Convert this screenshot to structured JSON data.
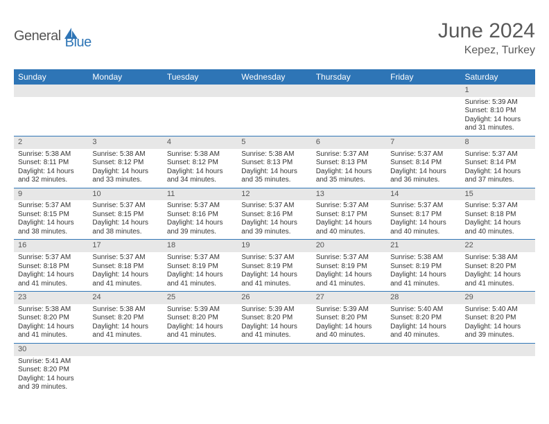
{
  "logo": {
    "text1": "General",
    "text2": "Blue"
  },
  "title": "June 2024",
  "location": "Kepez, Turkey",
  "columns": [
    "Sunday",
    "Monday",
    "Tuesday",
    "Wednesday",
    "Thursday",
    "Friday",
    "Saturday"
  ],
  "colors": {
    "header_bg": "#2e75b6",
    "header_text": "#ffffff",
    "daynum_bg": "#e7e7e7",
    "daynum_text": "#555555",
    "cell_border": "#2e75b6",
    "body_text": "#333333",
    "title_text": "#595959",
    "logo_gray": "#555555",
    "logo_blue": "#2e75b6"
  },
  "weeks": [
    [
      {
        "empty": true
      },
      {
        "empty": true
      },
      {
        "empty": true
      },
      {
        "empty": true
      },
      {
        "empty": true
      },
      {
        "empty": true
      },
      {
        "day": "1",
        "sunrise": "Sunrise: 5:39 AM",
        "sunset": "Sunset: 8:10 PM",
        "daylight1": "Daylight: 14 hours",
        "daylight2": "and 31 minutes."
      }
    ],
    [
      {
        "day": "2",
        "sunrise": "Sunrise: 5:38 AM",
        "sunset": "Sunset: 8:11 PM",
        "daylight1": "Daylight: 14 hours",
        "daylight2": "and 32 minutes."
      },
      {
        "day": "3",
        "sunrise": "Sunrise: 5:38 AM",
        "sunset": "Sunset: 8:12 PM",
        "daylight1": "Daylight: 14 hours",
        "daylight2": "and 33 minutes."
      },
      {
        "day": "4",
        "sunrise": "Sunrise: 5:38 AM",
        "sunset": "Sunset: 8:12 PM",
        "daylight1": "Daylight: 14 hours",
        "daylight2": "and 34 minutes."
      },
      {
        "day": "5",
        "sunrise": "Sunrise: 5:38 AM",
        "sunset": "Sunset: 8:13 PM",
        "daylight1": "Daylight: 14 hours",
        "daylight2": "and 35 minutes."
      },
      {
        "day": "6",
        "sunrise": "Sunrise: 5:37 AM",
        "sunset": "Sunset: 8:13 PM",
        "daylight1": "Daylight: 14 hours",
        "daylight2": "and 35 minutes."
      },
      {
        "day": "7",
        "sunrise": "Sunrise: 5:37 AM",
        "sunset": "Sunset: 8:14 PM",
        "daylight1": "Daylight: 14 hours",
        "daylight2": "and 36 minutes."
      },
      {
        "day": "8",
        "sunrise": "Sunrise: 5:37 AM",
        "sunset": "Sunset: 8:14 PM",
        "daylight1": "Daylight: 14 hours",
        "daylight2": "and 37 minutes."
      }
    ],
    [
      {
        "day": "9",
        "sunrise": "Sunrise: 5:37 AM",
        "sunset": "Sunset: 8:15 PM",
        "daylight1": "Daylight: 14 hours",
        "daylight2": "and 38 minutes."
      },
      {
        "day": "10",
        "sunrise": "Sunrise: 5:37 AM",
        "sunset": "Sunset: 8:15 PM",
        "daylight1": "Daylight: 14 hours",
        "daylight2": "and 38 minutes."
      },
      {
        "day": "11",
        "sunrise": "Sunrise: 5:37 AM",
        "sunset": "Sunset: 8:16 PM",
        "daylight1": "Daylight: 14 hours",
        "daylight2": "and 39 minutes."
      },
      {
        "day": "12",
        "sunrise": "Sunrise: 5:37 AM",
        "sunset": "Sunset: 8:16 PM",
        "daylight1": "Daylight: 14 hours",
        "daylight2": "and 39 minutes."
      },
      {
        "day": "13",
        "sunrise": "Sunrise: 5:37 AM",
        "sunset": "Sunset: 8:17 PM",
        "daylight1": "Daylight: 14 hours",
        "daylight2": "and 40 minutes."
      },
      {
        "day": "14",
        "sunrise": "Sunrise: 5:37 AM",
        "sunset": "Sunset: 8:17 PM",
        "daylight1": "Daylight: 14 hours",
        "daylight2": "and 40 minutes."
      },
      {
        "day": "15",
        "sunrise": "Sunrise: 5:37 AM",
        "sunset": "Sunset: 8:18 PM",
        "daylight1": "Daylight: 14 hours",
        "daylight2": "and 40 minutes."
      }
    ],
    [
      {
        "day": "16",
        "sunrise": "Sunrise: 5:37 AM",
        "sunset": "Sunset: 8:18 PM",
        "daylight1": "Daylight: 14 hours",
        "daylight2": "and 41 minutes."
      },
      {
        "day": "17",
        "sunrise": "Sunrise: 5:37 AM",
        "sunset": "Sunset: 8:18 PM",
        "daylight1": "Daylight: 14 hours",
        "daylight2": "and 41 minutes."
      },
      {
        "day": "18",
        "sunrise": "Sunrise: 5:37 AM",
        "sunset": "Sunset: 8:19 PM",
        "daylight1": "Daylight: 14 hours",
        "daylight2": "and 41 minutes."
      },
      {
        "day": "19",
        "sunrise": "Sunrise: 5:37 AM",
        "sunset": "Sunset: 8:19 PM",
        "daylight1": "Daylight: 14 hours",
        "daylight2": "and 41 minutes."
      },
      {
        "day": "20",
        "sunrise": "Sunrise: 5:37 AM",
        "sunset": "Sunset: 8:19 PM",
        "daylight1": "Daylight: 14 hours",
        "daylight2": "and 41 minutes."
      },
      {
        "day": "21",
        "sunrise": "Sunrise: 5:38 AM",
        "sunset": "Sunset: 8:19 PM",
        "daylight1": "Daylight: 14 hours",
        "daylight2": "and 41 minutes."
      },
      {
        "day": "22",
        "sunrise": "Sunrise: 5:38 AM",
        "sunset": "Sunset: 8:20 PM",
        "daylight1": "Daylight: 14 hours",
        "daylight2": "and 41 minutes."
      }
    ],
    [
      {
        "day": "23",
        "sunrise": "Sunrise: 5:38 AM",
        "sunset": "Sunset: 8:20 PM",
        "daylight1": "Daylight: 14 hours",
        "daylight2": "and 41 minutes."
      },
      {
        "day": "24",
        "sunrise": "Sunrise: 5:38 AM",
        "sunset": "Sunset: 8:20 PM",
        "daylight1": "Daylight: 14 hours",
        "daylight2": "and 41 minutes."
      },
      {
        "day": "25",
        "sunrise": "Sunrise: 5:39 AM",
        "sunset": "Sunset: 8:20 PM",
        "daylight1": "Daylight: 14 hours",
        "daylight2": "and 41 minutes."
      },
      {
        "day": "26",
        "sunrise": "Sunrise: 5:39 AM",
        "sunset": "Sunset: 8:20 PM",
        "daylight1": "Daylight: 14 hours",
        "daylight2": "and 41 minutes."
      },
      {
        "day": "27",
        "sunrise": "Sunrise: 5:39 AM",
        "sunset": "Sunset: 8:20 PM",
        "daylight1": "Daylight: 14 hours",
        "daylight2": "and 40 minutes."
      },
      {
        "day": "28",
        "sunrise": "Sunrise: 5:40 AM",
        "sunset": "Sunset: 8:20 PM",
        "daylight1": "Daylight: 14 hours",
        "daylight2": "and 40 minutes."
      },
      {
        "day": "29",
        "sunrise": "Sunrise: 5:40 AM",
        "sunset": "Sunset: 8:20 PM",
        "daylight1": "Daylight: 14 hours",
        "daylight2": "and 39 minutes."
      }
    ],
    [
      {
        "day": "30",
        "sunrise": "Sunrise: 5:41 AM",
        "sunset": "Sunset: 8:20 PM",
        "daylight1": "Daylight: 14 hours",
        "daylight2": "and 39 minutes."
      },
      {
        "empty": true
      },
      {
        "empty": true
      },
      {
        "empty": true
      },
      {
        "empty": true
      },
      {
        "empty": true
      },
      {
        "empty": true
      }
    ]
  ]
}
